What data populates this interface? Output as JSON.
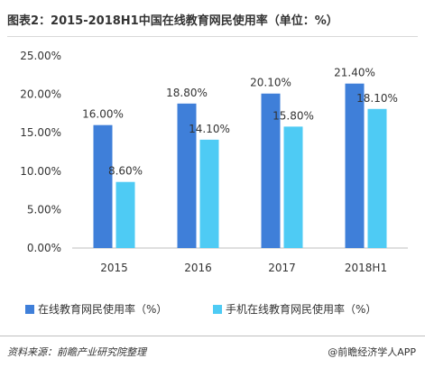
{
  "title": "图表2：2015-2018H1中国在线教育网民使用率（单位：%）",
  "source": "资料来源：前瞻产业研究院整理",
  "brand": "@前瞻经济学人APP",
  "colors": {
    "series1": "#3f7fd9",
    "series2": "#4ecbf4",
    "axis": "#bfbfbf",
    "text": "#333333"
  },
  "chart_data": {
    "type": "bar",
    "categories": [
      "2015",
      "2016",
      "2017",
      "2018H1"
    ],
    "series": [
      {
        "name": "在线教育网民使用率（%）",
        "values": [
          16.0,
          18.8,
          20.1,
          21.4
        ],
        "labels": [
          "16.00%",
          "18.80%",
          "20.10%",
          "21.40%"
        ]
      },
      {
        "name": "手机在线教育网民使用率（%）",
        "values": [
          8.6,
          14.1,
          15.8,
          18.1
        ],
        "labels": [
          "8.60%",
          "14.10%",
          "15.80%",
          "18.10%"
        ]
      }
    ],
    "yticks": [
      "0.00%",
      "5.00%",
      "10.00%",
      "15.00%",
      "20.00%",
      "25.00%"
    ],
    "ylim": [
      0,
      25
    ],
    "grid": false,
    "legend_position": "bottom"
  }
}
